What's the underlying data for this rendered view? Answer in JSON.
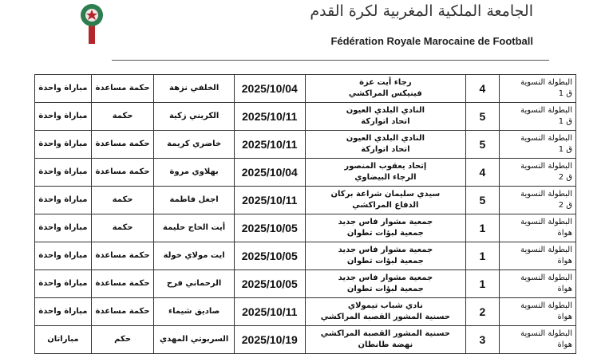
{
  "header": {
    "title_ar": "الجامعة الملكية المغربية لكرة القدم",
    "title_fr": "Fédération Royale Marocaine de Football",
    "logo": "frmf-logo",
    "colors": {
      "logo_green": "#2e7d4f",
      "logo_red": "#b3262b"
    }
  },
  "rows": [
    {
      "competition": [
        "البطولة النسوية",
        "ق 1"
      ],
      "number": "4",
      "match": [
        "رجاء أيت عزة",
        "فينيكس المراكشي"
      ],
      "date": "2025/10/04",
      "name": "الخلفي نزهة",
      "role": "حكمة مساعدة",
      "count": "مباراة واحدة"
    },
    {
      "competition": [
        "البطولة النسوية",
        "ق 1"
      ],
      "number": "5",
      "match": [
        "النادي البلدي العيون",
        "اتحاد اتواركة"
      ],
      "date": "2025/10/11",
      "name": "الكريني زكية",
      "role": "حكمة",
      "count": "مباراة واحدة"
    },
    {
      "competition": [
        "البطولة النسوية",
        "ق 1"
      ],
      "number": "5",
      "match": [
        "النادي البلدي العيون",
        "اتحاد اتواركة"
      ],
      "date": "2025/10/11",
      "name": "خاضري كريمة",
      "role": "حكمة مساعدة",
      "count": "مباراة واحدة"
    },
    {
      "competition": [
        "البطولة النسوية",
        "ق 2"
      ],
      "number": "4",
      "match": [
        "إتحاد يعقوب المنصور",
        "الرجاء البيضاوي"
      ],
      "date": "2025/10/04",
      "name": "بهلاوي مروة",
      "role": "حكمة مساعدة",
      "count": "مباراة واحدة"
    },
    {
      "competition": [
        "البطولة النسوية",
        "ق 2"
      ],
      "number": "5",
      "match": [
        "سيدي سليمان شراعة بركان",
        "الدفاع المراكشي"
      ],
      "date": "2025/10/11",
      "name": "اجغل فاطمة",
      "role": "حكمة",
      "count": "مباراة واحدة"
    },
    {
      "competition": [
        "البطولة النسوية",
        "هواة"
      ],
      "number": "1",
      "match": [
        "جمعية مشوار فاس جديد",
        "جمعية لبؤات تطوان"
      ],
      "date": "2025/10/05",
      "name": "أيت الحاج حليمة",
      "role": "حكمة",
      "count": "مباراة واحدة"
    },
    {
      "competition": [
        "البطولة النسوية",
        "هواة"
      ],
      "number": "1",
      "match": [
        "جمعية مشوار فاس جديد",
        "جمعية لبؤات تطوان"
      ],
      "date": "2025/10/05",
      "name": "ايت مولاي خولة",
      "role": "حكمة مساعدة",
      "count": "مباراة واحدة"
    },
    {
      "competition": [
        "البطولة النسوية",
        "هواة"
      ],
      "number": "1",
      "match": [
        "جمعية مشوار فاس جديد",
        "جمعية لبؤات تطوان"
      ],
      "date": "2025/10/05",
      "name": "الرحماني فرح",
      "role": "حكمة مساعدة",
      "count": "مباراة واحدة"
    },
    {
      "competition": [
        "البطولة النسوية",
        "هواة"
      ],
      "number": "2",
      "match": [
        "نادي شباب تيمولاي",
        "حسنية المشور القصبة المراكشي"
      ],
      "date": "2025/10/11",
      "name": "صاديق شيماء",
      "role": "حكمة مساعدة",
      "count": "مباراة واحدة"
    },
    {
      "competition": [
        "البطولة النسوية",
        "هواة"
      ],
      "number": "3",
      "match": [
        "حسنية المشور القصبة المراكشي",
        "نهضة طانطان"
      ],
      "date": "2025/10/19",
      "name": "السربوتي المهدي",
      "role": "حكم",
      "count": "مباراتان"
    }
  ]
}
